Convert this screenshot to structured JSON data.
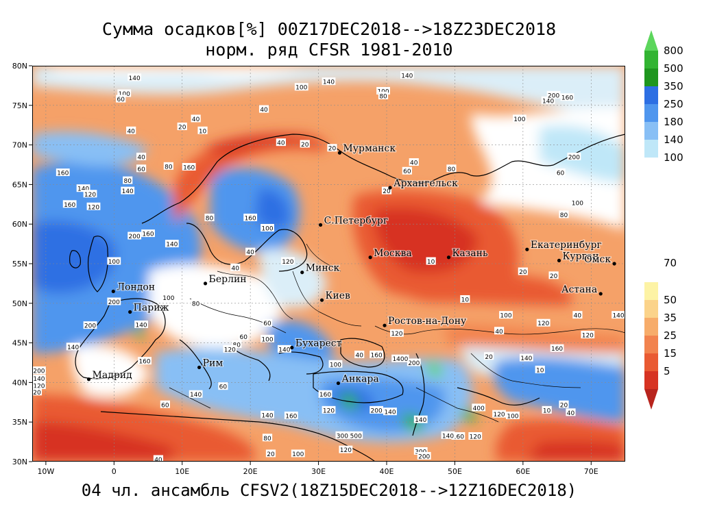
{
  "header": {
    "title_line1": "Сумма осадков[%] 00Z17DEC2018-->18Z23DEC2018",
    "title_line2": "норм. ряд CFSR 1981-2010",
    "subtitle": "04 чл. ансамбль CFSV2(18Z15DEC2018-->12Z16DEC2018)"
  },
  "map": {
    "extent": {
      "lon": [
        -12,
        75
      ],
      "lat": [
        30,
        80
      ]
    },
    "lon_ticks": [
      {
        "lon": -10,
        "label": "10W"
      },
      {
        "lon": 0,
        "label": "0"
      },
      {
        "lon": 10,
        "label": "10E"
      },
      {
        "lon": 20,
        "label": "20E"
      },
      {
        "lon": 30,
        "label": "30E"
      },
      {
        "lon": 40,
        "label": "40E"
      },
      {
        "lon": 50,
        "label": "50E"
      },
      {
        "lon": 60,
        "label": "60E"
      },
      {
        "lon": 70,
        "label": "70E"
      }
    ],
    "lat_ticks": [
      {
        "lat": 30,
        "label": "30N"
      },
      {
        "lat": 35,
        "label": "35N"
      },
      {
        "lat": 40,
        "label": "40N"
      },
      {
        "lat": 45,
        "label": "45N"
      },
      {
        "lat": 50,
        "label": "50N"
      },
      {
        "lat": 55,
        "label": "55N"
      },
      {
        "lat": 60,
        "label": "60N"
      },
      {
        "lat": 65,
        "label": "65N"
      },
      {
        "lat": 70,
        "label": "70N"
      },
      {
        "lat": 75,
        "label": "75N"
      },
      {
        "lat": 80,
        "label": "80N"
      }
    ],
    "cities": [
      {
        "name": "Мурманск",
        "lon": 33.1,
        "lat": 69.0
      },
      {
        "name": "Архангельск",
        "lon": 40.5,
        "lat": 64.6
      },
      {
        "name": "С.Петербург",
        "lon": 30.3,
        "lat": 59.9
      },
      {
        "name": "Москва",
        "lon": 37.6,
        "lat": 55.8
      },
      {
        "name": "Казань",
        "lon": 49.1,
        "lat": 55.8
      },
      {
        "name": "Екатеринбург",
        "lon": 60.6,
        "lat": 56.8
      },
      {
        "name": "Курган",
        "lon": 65.3,
        "lat": 55.4
      },
      {
        "name": "Омск",
        "lon": 73.4,
        "lat": 55.0
      },
      {
        "name": "Астана",
        "lon": 71.4,
        "lat": 51.2
      },
      {
        "name": "Минск",
        "lon": 27.6,
        "lat": 53.9
      },
      {
        "name": "Берлин",
        "lon": 13.4,
        "lat": 52.5
      },
      {
        "name": "Лондон",
        "lon": -0.1,
        "lat": 51.5
      },
      {
        "name": "Париж",
        "lon": 2.35,
        "lat": 48.9
      },
      {
        "name": "Киев",
        "lon": 30.5,
        "lat": 50.4
      },
      {
        "name": "Ростов-на-Дону",
        "lon": 39.7,
        "lat": 47.2
      },
      {
        "name": "Бухарест",
        "lon": 26.1,
        "lat": 44.4
      },
      {
        "name": "Рим",
        "lon": 12.5,
        "lat": 41.9
      },
      {
        "name": "Мадрид",
        "lon": -3.7,
        "lat": 40.4
      },
      {
        "name": "Анкара",
        "lon": 32.9,
        "lat": 39.9
      }
    ],
    "contour_labels": [
      {
        "t": "140",
        "lon": 3,
        "lat": 78.5
      },
      {
        "t": "100",
        "lon": 1.5,
        "lat": 76.5
      },
      {
        "t": "60",
        "lon": 1,
        "lat": 75.8
      },
      {
        "t": "40",
        "lon": 22,
        "lat": 74.5
      },
      {
        "t": "100",
        "lon": 27.5,
        "lat": 77.3
      },
      {
        "t": "140",
        "lon": 31.5,
        "lat": 78
      },
      {
        "t": "40",
        "lon": 12,
        "lat": 73.3
      },
      {
        "t": "40",
        "lon": 2.5,
        "lat": 71.8
      },
      {
        "t": "20",
        "lon": 10,
        "lat": 72.3
      },
      {
        "t": "10",
        "lon": 13,
        "lat": 71.8
      },
      {
        "t": "40",
        "lon": 4,
        "lat": 68.5
      },
      {
        "t": "60",
        "lon": 4,
        "lat": 67
      },
      {
        "t": "160",
        "lon": -7.5,
        "lat": 66.5
      },
      {
        "t": "160",
        "lon": 11,
        "lat": 67.2
      },
      {
        "t": "80",
        "lon": 8,
        "lat": 67.3
      },
      {
        "t": "80",
        "lon": 2,
        "lat": 65.5
      },
      {
        "t": "140",
        "lon": -4.5,
        "lat": 64.5
      },
      {
        "t": "120",
        "lon": -3.5,
        "lat": 63.8
      },
      {
        "t": "140",
        "lon": 2,
        "lat": 64.2
      },
      {
        "t": "160",
        "lon": -6.5,
        "lat": 62.5
      },
      {
        "t": "120",
        "lon": -3,
        "lat": 62.2
      },
      {
        "t": "200",
        "lon": 3,
        "lat": 58.5
      },
      {
        "t": "160",
        "lon": 5,
        "lat": 58.8
      },
      {
        "t": "140",
        "lon": 8.5,
        "lat": 57.5
      },
      {
        "t": "100",
        "lon": 0,
        "lat": 55.3
      },
      {
        "t": "40",
        "lon": 17.8,
        "lat": 54.5
      },
      {
        "t": "40",
        "lon": 24.5,
        "lat": 70.3
      },
      {
        "t": "20",
        "lon": 28,
        "lat": 70.1
      },
      {
        "t": "20",
        "lon": 32,
        "lat": 69.6
      },
      {
        "t": "20",
        "lon": 40,
        "lat": 64.2
      },
      {
        "t": "40",
        "lon": 44,
        "lat": 67.8
      },
      {
        "t": "60",
        "lon": 43,
        "lat": 66.7
      },
      {
        "t": "80",
        "lon": 49.5,
        "lat": 67
      },
      {
        "t": "100",
        "lon": 39.5,
        "lat": 76.8
      },
      {
        "t": "80",
        "lon": 39.5,
        "lat": 76.2
      },
      {
        "t": "140",
        "lon": 43,
        "lat": 78.8
      },
      {
        "t": "100",
        "lon": 59.5,
        "lat": 73.3
      },
      {
        "t": "140",
        "lon": 63.7,
        "lat": 75.6
      },
      {
        "t": "200",
        "lon": 64.5,
        "lat": 76.3
      },
      {
        "t": "160",
        "lon": 66.5,
        "lat": 76
      },
      {
        "t": "200",
        "lon": 67.5,
        "lat": 68.5
      },
      {
        "t": "60",
        "lon": 65.5,
        "lat": 66.5
      },
      {
        "t": "100",
        "lon": 68,
        "lat": 62.7
      },
      {
        "t": "80",
        "lon": 66,
        "lat": 61.2
      },
      {
        "t": "10",
        "lon": 46.5,
        "lat": 55.3
      },
      {
        "t": "10",
        "lon": 51.5,
        "lat": 50.5
      },
      {
        "t": "20",
        "lon": 60,
        "lat": 54
      },
      {
        "t": "20",
        "lon": 64.5,
        "lat": 53.5
      },
      {
        "t": "40",
        "lon": 68,
        "lat": 48.5
      },
      {
        "t": "140",
        "lon": 74,
        "lat": 48.5
      },
      {
        "t": "100",
        "lon": 57.5,
        "lat": 48.5
      },
      {
        "t": "40",
        "lon": 56.5,
        "lat": 46.5
      },
      {
        "t": "120",
        "lon": 63,
        "lat": 47.5
      },
      {
        "t": "120",
        "lon": 69.5,
        "lat": 46
      },
      {
        "t": "160",
        "lon": 65,
        "lat": 44.3
      },
      {
        "t": "20",
        "lon": 55,
        "lat": 43.3
      },
      {
        "t": "10",
        "lon": 62.5,
        "lat": 41.6
      },
      {
        "t": "140",
        "lon": 60.5,
        "lat": 43.1
      },
      {
        "t": "20",
        "lon": 66,
        "lat": 37.2
      },
      {
        "t": "40",
        "lon": 67,
        "lat": 36.2
      },
      {
        "t": "10",
        "lon": 63.5,
        "lat": 36.5
      },
      {
        "t": "100",
        "lon": 58.5,
        "lat": 35.8
      },
      {
        "t": "120",
        "lon": 56.5,
        "lat": 36
      },
      {
        "t": "400",
        "lon": 53.5,
        "lat": 36.8
      },
      {
        "t": "120",
        "lon": 53,
        "lat": 33.2
      },
      {
        "t": "160",
        "lon": 50.5,
        "lat": 33.2
      },
      {
        "t": "140",
        "lon": 49,
        "lat": 33.3
      },
      {
        "t": "300",
        "lon": 45,
        "lat": 31.3
      },
      {
        "t": "200",
        "lon": 45.5,
        "lat": 30.7
      },
      {
        "t": "140",
        "lon": 45,
        "lat": 35.3
      },
      {
        "t": "200",
        "lon": 44,
        "lat": 42.5
      },
      {
        "t": "120",
        "lon": 41.5,
        "lat": 46.2
      },
      {
        "t": "160",
        "lon": 38.5,
        "lat": 43.5
      },
      {
        "t": "1400",
        "lon": 42,
        "lat": 43
      },
      {
        "t": "40",
        "lon": 36,
        "lat": 43.5
      },
      {
        "t": "100",
        "lon": 32.5,
        "lat": 42.3
      },
      {
        "t": "160",
        "lon": 31,
        "lat": 38.5
      },
      {
        "t": "120",
        "lon": 31.5,
        "lat": 36.5
      },
      {
        "t": "200",
        "lon": 38.5,
        "lat": 36.5
      },
      {
        "t": "140",
        "lon": 40.5,
        "lat": 36.3
      },
      {
        "t": "300",
        "lon": 33.5,
        "lat": 33.3
      },
      {
        "t": "500",
        "lon": 35.5,
        "lat": 33.3
      },
      {
        "t": "120",
        "lon": 34,
        "lat": 31.5
      },
      {
        "t": "100",
        "lon": 27,
        "lat": 31
      },
      {
        "t": "80",
        "lon": 22.5,
        "lat": 33
      },
      {
        "t": "20",
        "lon": 23,
        "lat": 31
      },
      {
        "t": "160",
        "lon": 26,
        "lat": 35.8
      },
      {
        "t": "140",
        "lon": 22.5,
        "lat": 35.9
      },
      {
        "t": "60",
        "lon": 16,
        "lat": 39.5
      },
      {
        "t": "60",
        "lon": 19,
        "lat": 45.8
      },
      {
        "t": "80",
        "lon": 18,
        "lat": 44.8
      },
      {
        "t": "120",
        "lon": 17,
        "lat": 44.2
      },
      {
        "t": "100",
        "lon": 22.5,
        "lat": 45.5
      },
      {
        "t": "140",
        "lon": 25,
        "lat": 44.2
      },
      {
        "t": "60",
        "lon": 22.5,
        "lat": 47.5
      },
      {
        "t": "120",
        "lon": 25.5,
        "lat": 55.3
      },
      {
        "t": "80",
        "lon": 14,
        "lat": 60.8
      },
      {
        "t": "160",
        "lon": 20,
        "lat": 60.8
      },
      {
        "t": "100",
        "lon": 22.5,
        "lat": 59.5
      },
      {
        "t": "40",
        "lon": 20,
        "lat": 56.5
      },
      {
        "t": "100",
        "lon": 8,
        "lat": 50.7
      },
      {
        "t": "80",
        "lon": 12,
        "lat": 50
      },
      {
        "t": "200",
        "lon": 0,
        "lat": 50.2
      },
      {
        "t": "140",
        "lon": 4,
        "lat": 47.3
      },
      {
        "t": "200",
        "lon": -3.5,
        "lat": 47.2
      },
      {
        "t": "140",
        "lon": -6,
        "lat": 44.5
      },
      {
        "t": "160",
        "lon": 4.5,
        "lat": 42.7
      },
      {
        "t": "200",
        "lon": -11,
        "lat": 41.5
      },
      {
        "t": "140",
        "lon": -11,
        "lat": 40.5
      },
      {
        "t": "120",
        "lon": -11,
        "lat": 39.6
      },
      {
        "t": "20",
        "lon": -11.3,
        "lat": 38.8
      },
      {
        "t": "60",
        "lon": 7.5,
        "lat": 37.2
      },
      {
        "t": "140",
        "lon": 12,
        "lat": 38.5
      },
      {
        "t": "40",
        "lon": 6.5,
        "lat": 30.3
      }
    ]
  },
  "legend": {
    "items": [
      {
        "label": "800",
        "color": "#5cd65c"
      },
      {
        "label": "500",
        "color": "#32b432"
      },
      {
        "label": "350",
        "color": "#1e961e"
      },
      {
        "label": "250",
        "color": "#2d6fe3"
      },
      {
        "label": "180",
        "color": "#4f96ee"
      },
      {
        "label": "140",
        "color": "#88bff5"
      },
      {
        "label": "100",
        "color": "#bfe7f8"
      },
      {
        "label": "70",
        "color": "#ffffff"
      },
      {
        "label": "50",
        "color": "#fdf3a5"
      },
      {
        "label": "35",
        "color": "#fbd38a"
      },
      {
        "label": "25",
        "color": "#f7ac6a"
      },
      {
        "label": "15",
        "color": "#f2834e"
      },
      {
        "label": "5",
        "color": "#e95a32"
      },
      {
        "label": "",
        "color": "#d73322"
      }
    ],
    "bottom_triangle_color": "#b8241d"
  }
}
